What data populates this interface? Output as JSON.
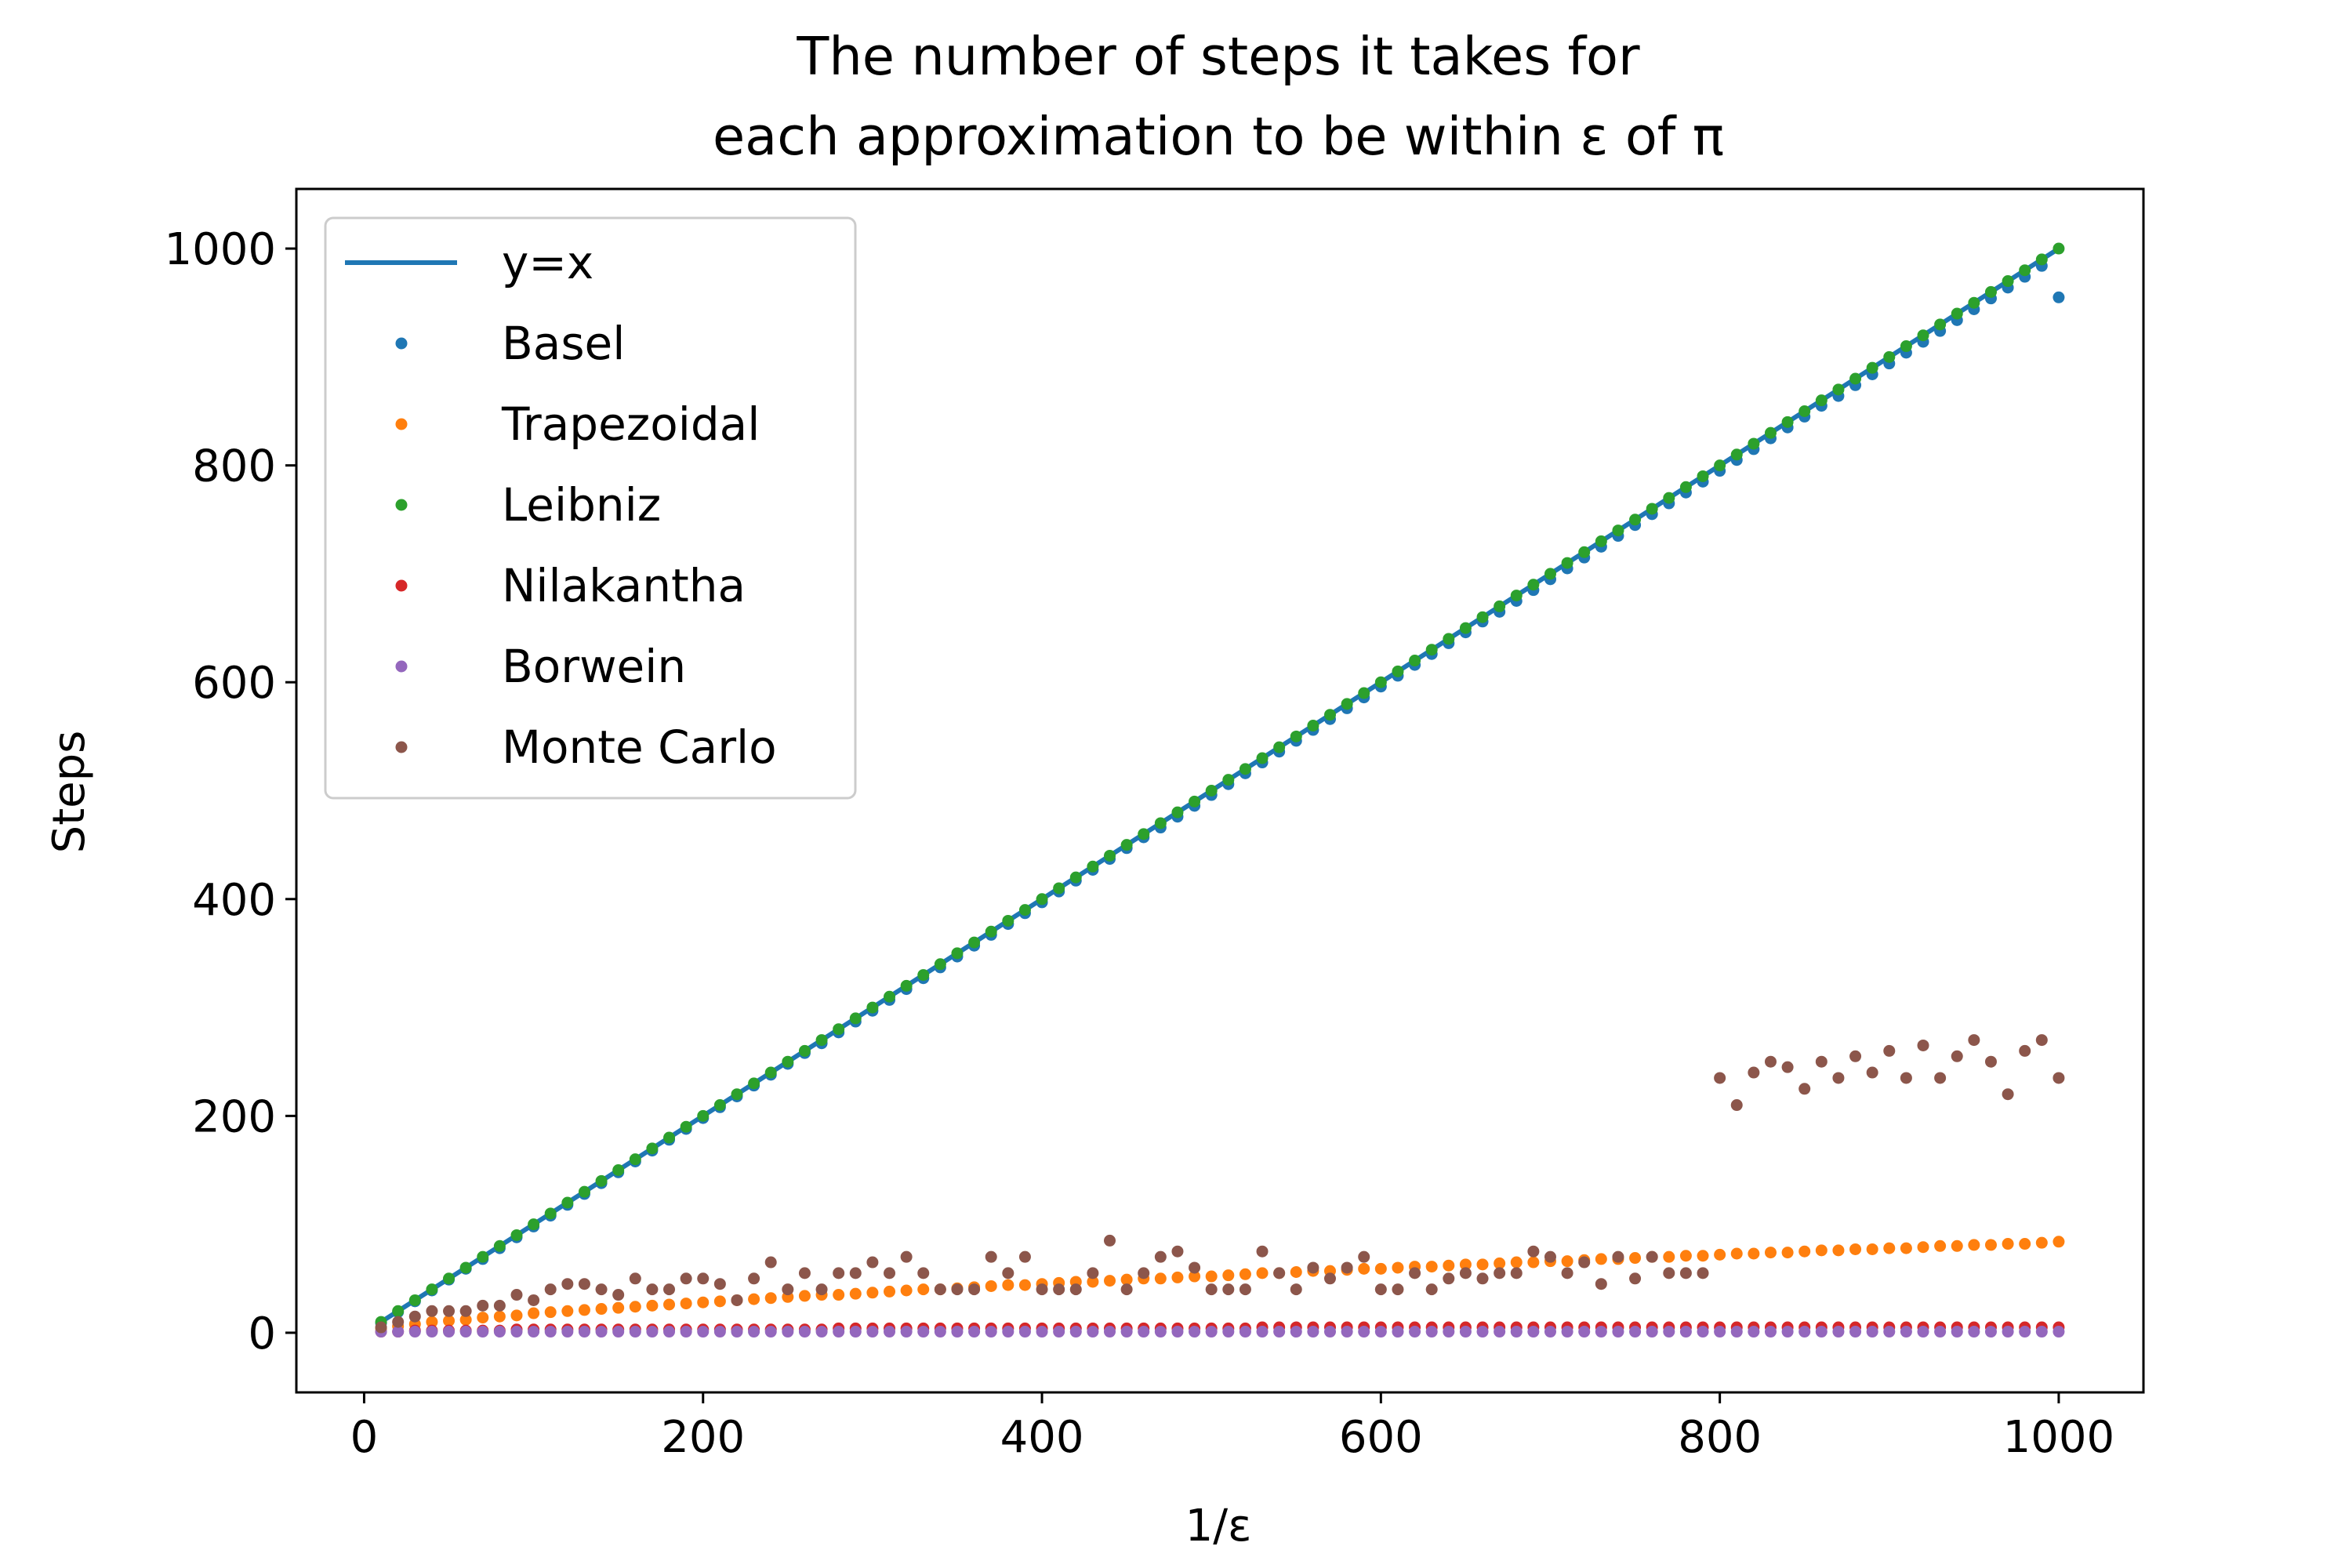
{
  "chart_data": {
    "type": "scatter",
    "title_lines": [
      "The number of steps it takes for",
      "each approximation to be within ε of π"
    ],
    "xlabel": "1/ε",
    "ylabel": "Steps",
    "xlim": [
      -40,
      1050
    ],
    "ylim": [
      -55,
      1055
    ],
    "xticks": [
      0,
      200,
      400,
      600,
      800,
      1000
    ],
    "yticks": [
      0,
      200,
      400,
      600,
      800,
      1000
    ],
    "xtick_labels": [
      "0",
      "200",
      "400",
      "600",
      "800",
      "1000"
    ],
    "ytick_labels": [
      "0",
      "200",
      "400",
      "600",
      "800",
      "1000"
    ],
    "grid": false,
    "legend_position": "upper-left",
    "x": [
      10,
      20,
      30,
      40,
      50,
      60,
      70,
      80,
      90,
      100,
      110,
      120,
      130,
      140,
      150,
      160,
      170,
      180,
      190,
      200,
      210,
      220,
      230,
      240,
      250,
      260,
      270,
      280,
      290,
      300,
      310,
      320,
      330,
      340,
      350,
      360,
      370,
      380,
      390,
      400,
      410,
      420,
      430,
      440,
      450,
      460,
      470,
      480,
      490,
      500,
      510,
      520,
      530,
      540,
      550,
      560,
      570,
      580,
      590,
      600,
      610,
      620,
      630,
      640,
      650,
      660,
      670,
      680,
      690,
      700,
      710,
      720,
      730,
      740,
      750,
      760,
      770,
      780,
      790,
      800,
      810,
      820,
      830,
      840,
      850,
      860,
      870,
      880,
      890,
      900,
      910,
      920,
      930,
      940,
      950,
      960,
      970,
      980,
      990,
      1000
    ],
    "line_series": {
      "name": "y=x",
      "color": "#1f77b4",
      "x": [
        10,
        1000
      ],
      "y": [
        10,
        1000
      ]
    },
    "series": [
      {
        "name": "Basel",
        "color": "#1f77b4",
        "values": [
          9,
          19,
          29,
          39,
          49,
          59,
          68,
          78,
          88,
          98,
          108,
          118,
          128,
          138,
          148,
          158,
          168,
          178,
          188,
          198,
          208,
          218,
          228,
          238,
          248,
          258,
          267,
          277,
          287,
          297,
          307,
          317,
          327,
          337,
          347,
          357,
          367,
          377,
          387,
          397,
          407,
          417,
          427,
          437,
          447,
          457,
          466,
          476,
          486,
          496,
          506,
          516,
          526,
          536,
          546,
          556,
          566,
          576,
          586,
          596,
          606,
          616,
          626,
          636,
          646,
          656,
          665,
          675,
          685,
          695,
          705,
          715,
          725,
          735,
          745,
          755,
          765,
          775,
          785,
          795,
          805,
          815,
          825,
          835,
          845,
          855,
          864,
          874,
          884,
          894,
          904,
          914,
          924,
          934,
          944,
          954,
          964,
          974,
          984,
          955
        ]
      },
      {
        "name": "Trapezoidal",
        "color": "#ff7f0e",
        "values": [
          4,
          6,
          8,
          10,
          11,
          12,
          14,
          15,
          16,
          18,
          19,
          20,
          21,
          22,
          23,
          24,
          25,
          26,
          27,
          28,
          29,
          30,
          31,
          32,
          33,
          34,
          35,
          35,
          36,
          37,
          38,
          39,
          40,
          40,
          41,
          42,
          43,
          44,
          44,
          45,
          46,
          47,
          47,
          48,
          49,
          50,
          50,
          51,
          52,
          52,
          53,
          54,
          55,
          55,
          56,
          57,
          57,
          58,
          59,
          59,
          60,
          61,
          61,
          62,
          63,
          63,
          64,
          65,
          65,
          66,
          66,
          67,
          68,
          68,
          69,
          70,
          70,
          71,
          71,
          72,
          73,
          73,
          74,
          74,
          75,
          76,
          76,
          77,
          77,
          78,
          78,
          79,
          80,
          80,
          81,
          81,
          82,
          82,
          83,
          84
        ]
      },
      {
        "name": "Leibniz",
        "color": "#2ca02c",
        "values": [
          10,
          20,
          30,
          40,
          50,
          60,
          70,
          80,
          90,
          100,
          110,
          120,
          130,
          140,
          150,
          160,
          170,
          180,
          190,
          200,
          210,
          220,
          230,
          240,
          250,
          260,
          270,
          280,
          290,
          300,
          310,
          320,
          330,
          340,
          350,
          360,
          370,
          380,
          390,
          400,
          410,
          420,
          430,
          440,
          450,
          460,
          470,
          480,
          490,
          500,
          510,
          520,
          530,
          540,
          550,
          560,
          570,
          580,
          590,
          600,
          610,
          620,
          630,
          640,
          650,
          660,
          670,
          680,
          690,
          700,
          710,
          720,
          730,
          740,
          750,
          760,
          770,
          780,
          790,
          800,
          810,
          820,
          830,
          840,
          850,
          860,
          870,
          880,
          890,
          900,
          910,
          920,
          930,
          940,
          950,
          960,
          970,
          980,
          990,
          1000
        ]
      },
      {
        "name": "Nilakantha",
        "color": "#d62728",
        "values": [
          1,
          1,
          2,
          2,
          2,
          2,
          2,
          2,
          3,
          3,
          3,
          3,
          3,
          3,
          3,
          3,
          3,
          3,
          3,
          3,
          3,
          3,
          3,
          3,
          3,
          3,
          3,
          4,
          4,
          4,
          4,
          4,
          4,
          4,
          4,
          4,
          4,
          4,
          4,
          4,
          4,
          4,
          4,
          4,
          4,
          4,
          4,
          4,
          4,
          4,
          4,
          4,
          5,
          5,
          5,
          5,
          5,
          5,
          5,
          5,
          5,
          5,
          5,
          5,
          5,
          5,
          5,
          5,
          5,
          5,
          5,
          5,
          5,
          5,
          5,
          5,
          5,
          5,
          5,
          5,
          5,
          5,
          5,
          5,
          5,
          5,
          5,
          5,
          5,
          5,
          5,
          5,
          5,
          5,
          5,
          5,
          5,
          5,
          5,
          5
        ]
      },
      {
        "name": "Borwein",
        "color": "#9467bd",
        "values": [
          1,
          1,
          1,
          1,
          1,
          1,
          1,
          1,
          1,
          1,
          1,
          1,
          1,
          1,
          1,
          1,
          1,
          1,
          1,
          1,
          1,
          1,
          1,
          1,
          1,
          1,
          1,
          1,
          1,
          1,
          1,
          1,
          1,
          1,
          1,
          1,
          1,
          1,
          1,
          1,
          1,
          1,
          1,
          1,
          1,
          1,
          1,
          1,
          1,
          1,
          1,
          1,
          1,
          1,
          1,
          1,
          1,
          1,
          1,
          1,
          1,
          1,
          1,
          1,
          1,
          1,
          1,
          1,
          1,
          1,
          1,
          1,
          1,
          1,
          1,
          1,
          1,
          1,
          1,
          1,
          1,
          1,
          1,
          1,
          1,
          1,
          1,
          1,
          1,
          1,
          1,
          1,
          1,
          1,
          1,
          1,
          1,
          1,
          1,
          1
        ]
      },
      {
        "name": "Monte Carlo",
        "color": "#8c564b",
        "values": [
          5,
          10,
          15,
          20,
          20,
          20,
          25,
          25,
          35,
          30,
          40,
          45,
          45,
          40,
          35,
          50,
          40,
          40,
          50,
          50,
          45,
          30,
          50,
          65,
          40,
          55,
          40,
          55,
          55,
          65,
          55,
          70,
          55,
          40,
          40,
          40,
          70,
          55,
          70,
          40,
          40,
          40,
          55,
          85,
          40,
          55,
          70,
          75,
          60,
          40,
          40,
          40,
          75,
          55,
          40,
          60,
          50,
          60,
          70,
          40,
          40,
          55,
          40,
          50,
          55,
          50,
          55,
          55,
          75,
          70,
          55,
          65,
          45,
          70,
          50,
          70,
          55,
          55,
          55,
          235,
          210,
          240,
          250,
          245,
          225,
          250,
          235,
          255,
          240,
          260,
          235,
          265,
          235,
          255,
          270,
          250,
          220,
          260,
          270,
          235
        ]
      }
    ]
  }
}
